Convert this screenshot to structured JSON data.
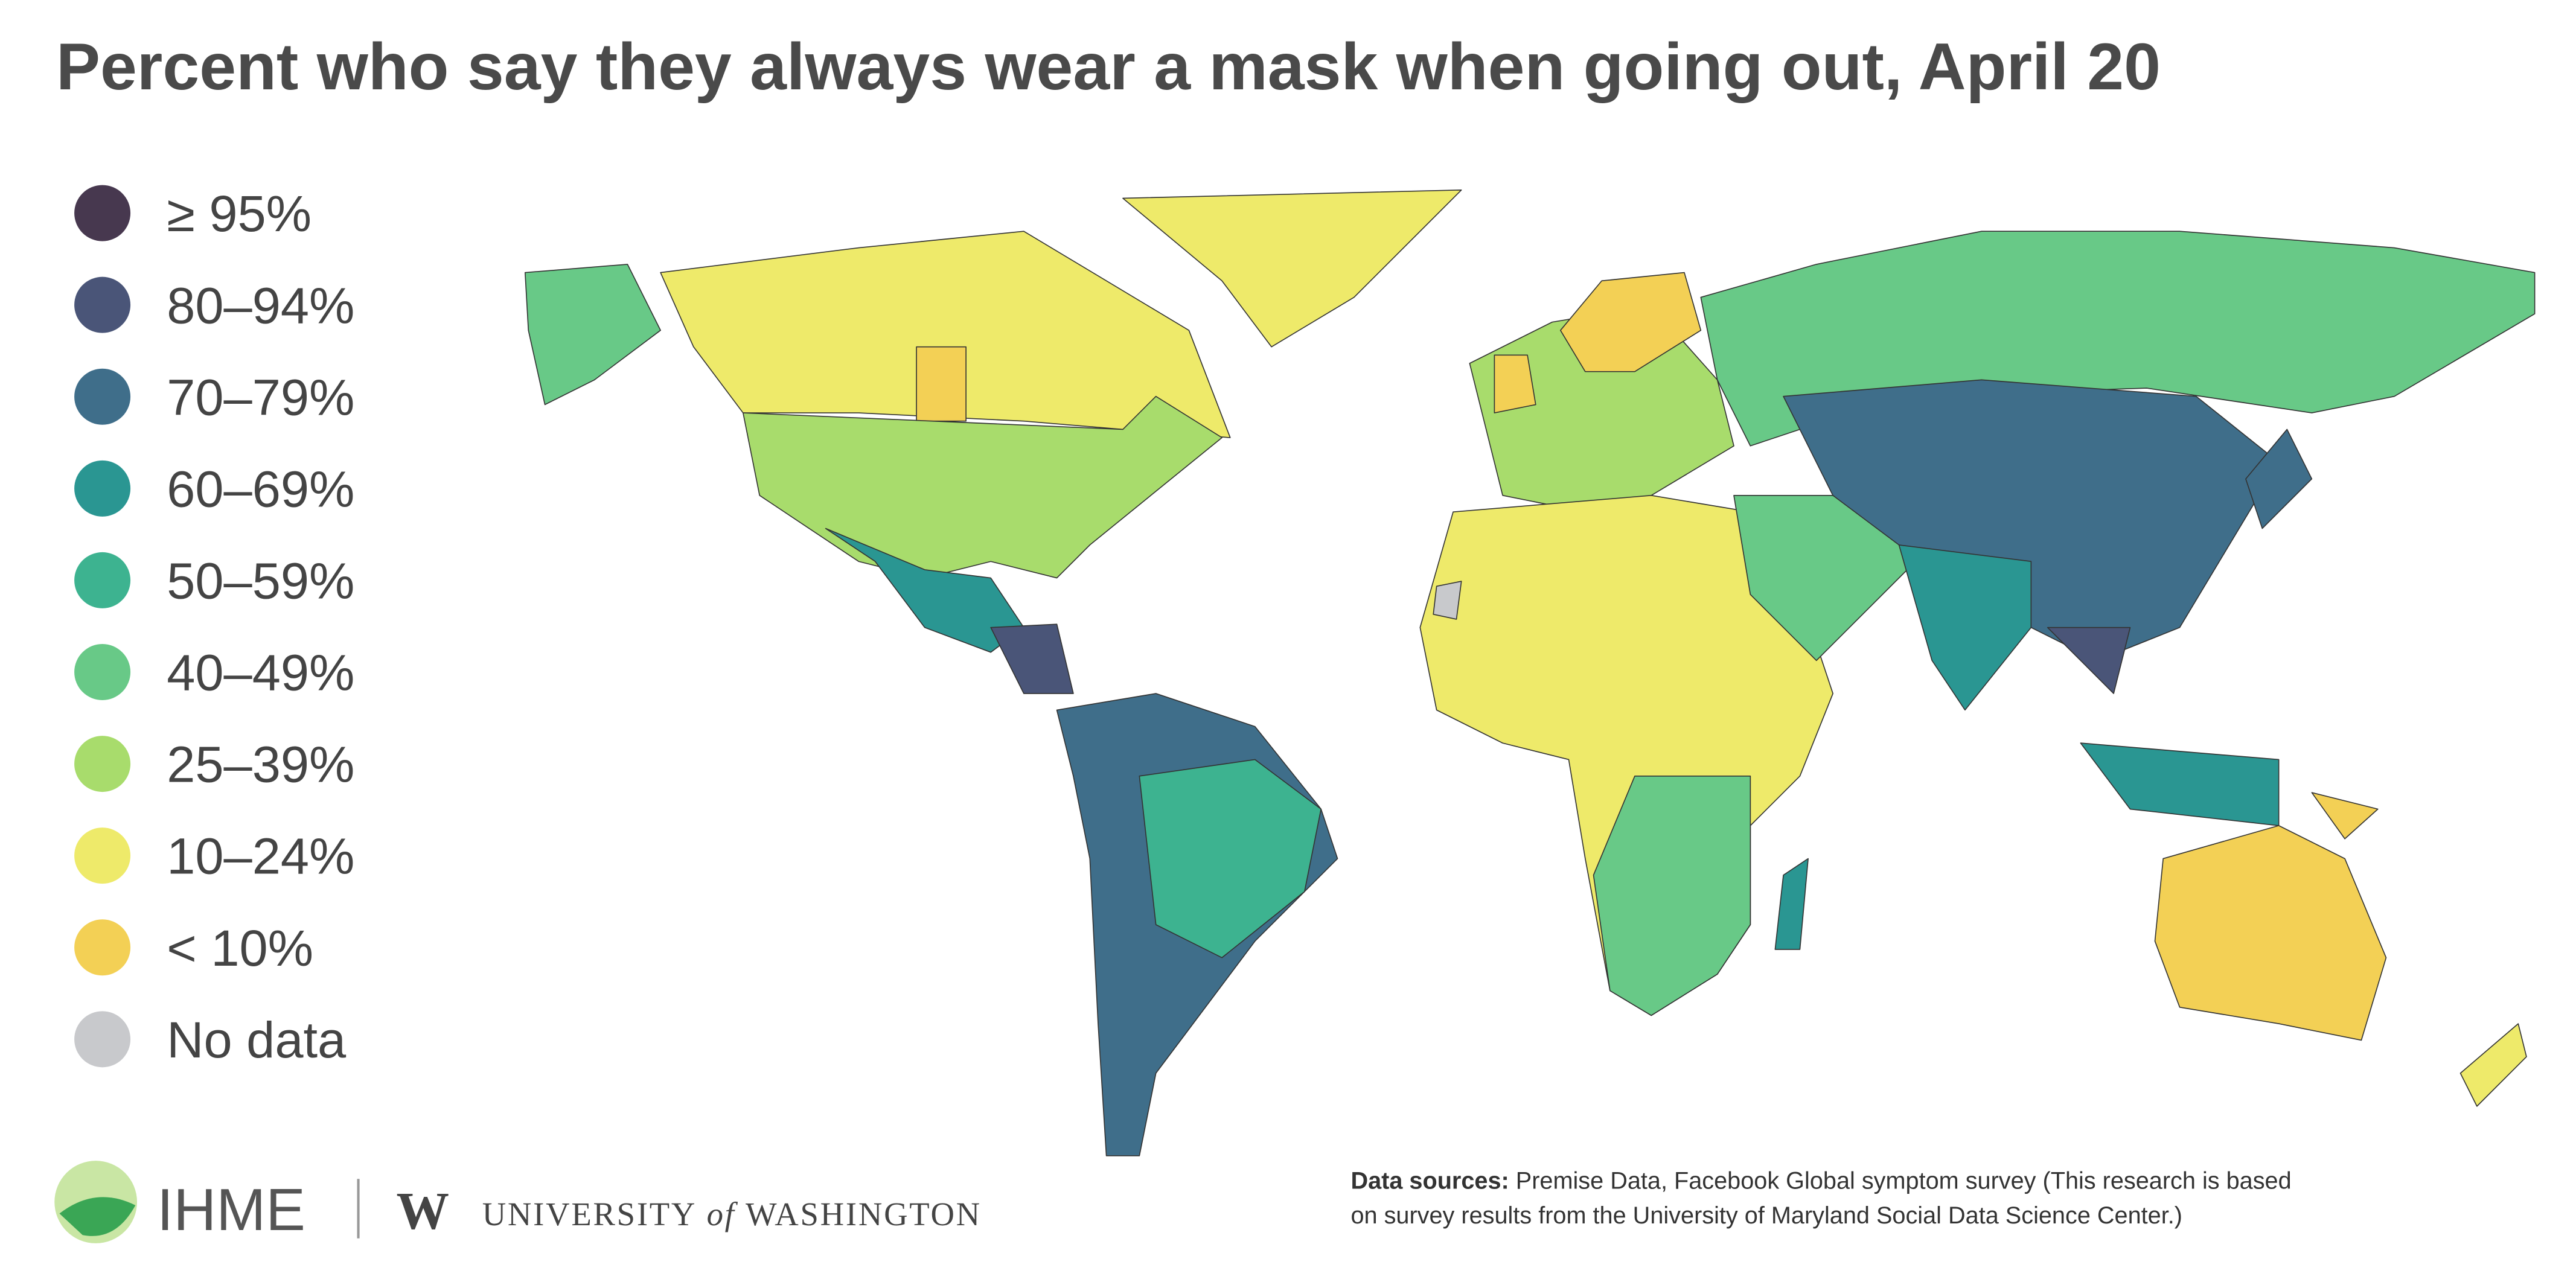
{
  "title": "Percent who say they always wear a mask when going out, April 20",
  "legend": [
    {
      "label": "≥ 95%",
      "color": "#47384f"
    },
    {
      "label": "80–94%",
      "color": "#4a5578"
    },
    {
      "label": "70–79%",
      "color": "#3f6e8a"
    },
    {
      "label": "60–69%",
      "color": "#2a9692"
    },
    {
      "label": "50–59%",
      "color": "#3db390"
    },
    {
      "label": "40–49%",
      "color": "#68c987"
    },
    {
      "label": "25–39%",
      "color": "#a8dc6c"
    },
    {
      "label": "10–24%",
      "color": "#eeea6a"
    },
    {
      "label": "< 10%",
      "color": "#f3d055"
    },
    {
      "label": "No data",
      "color": "#c8c9cc"
    }
  ],
  "logos": {
    "ihme": "IHME",
    "uw_mark": "W",
    "uw_1": "UNIVERSITY",
    "uw_2": "of",
    "uw_3": "WASHINGTON"
  },
  "sources": {
    "label": "Data sources:",
    "line1": "Premise Data, Facebook Global symptom survey (This research is based",
    "line2": "on survey results from the University of Maryland Social Data Science Center.)"
  }
}
